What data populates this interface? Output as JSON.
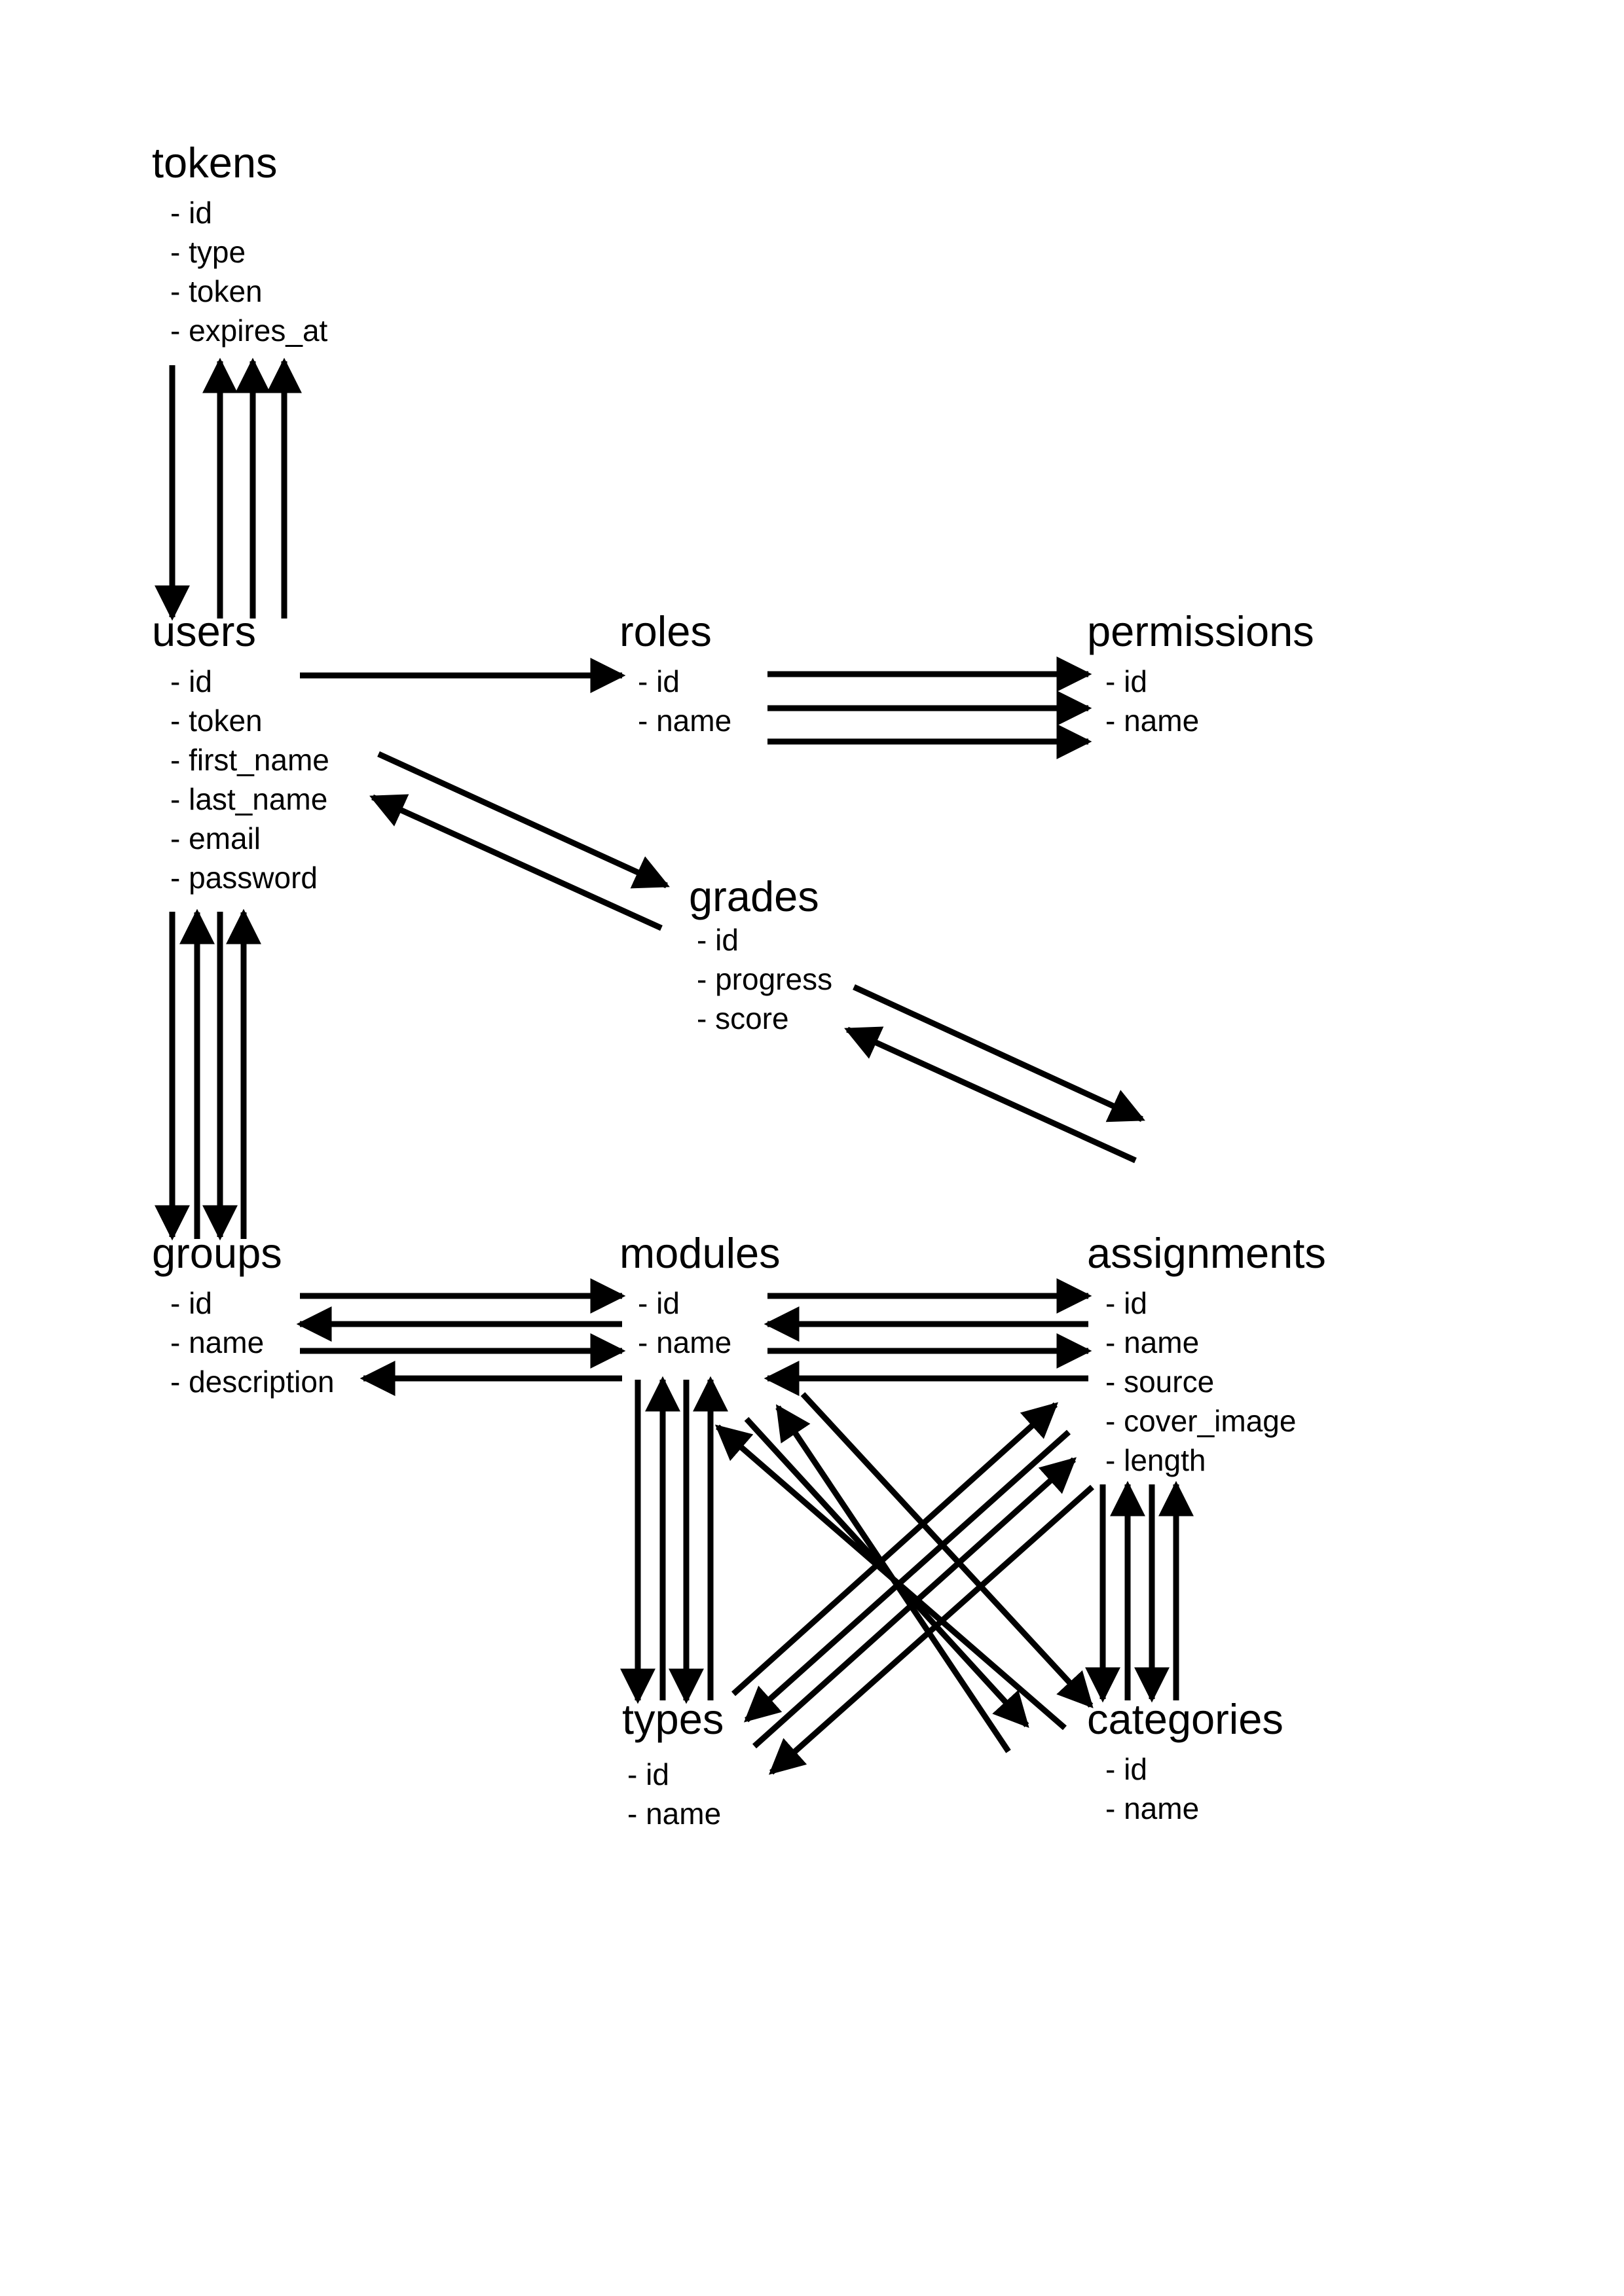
{
  "entities": {
    "tokens": {
      "title": "tokens",
      "fields": [
        "- id",
        "- type",
        "- token",
        "- expires_at"
      ]
    },
    "users": {
      "title": "users",
      "fields": [
        "- id",
        "- token",
        "- first_name",
        "- last_name",
        "- email",
        "- password"
      ]
    },
    "roles": {
      "title": "roles",
      "fields": [
        "- id",
        "- name"
      ]
    },
    "permissions": {
      "title": "permissions",
      "fields": [
        "- id",
        "- name"
      ]
    },
    "grades": {
      "title": "grades",
      "fields": [
        "- id",
        "- progress",
        "- score"
      ]
    },
    "groups": {
      "title": "groups",
      "fields": [
        "- id",
        "- name",
        "- description"
      ]
    },
    "modules": {
      "title": "modules",
      "fields": [
        "- id",
        "- name"
      ]
    },
    "assignments": {
      "title": "assignments",
      "fields": [
        "- id",
        "- name",
        "- source",
        "- cover_image",
        "- length"
      ]
    },
    "types": {
      "title": "types",
      "fields": [
        "- id",
        "- name"
      ]
    },
    "categories": {
      "title": "categories",
      "fields": [
        "- id",
        "- name"
      ]
    }
  },
  "relations": [
    {
      "from": "users",
      "to": "tokens"
    },
    {
      "from": "tokens",
      "to": "users"
    },
    {
      "from": "tokens",
      "to": "users"
    },
    {
      "from": "tokens",
      "to": "users"
    },
    {
      "from": "users",
      "to": "roles"
    },
    {
      "from": "roles",
      "to": "permissions"
    },
    {
      "from": "roles",
      "to": "permissions"
    },
    {
      "from": "roles",
      "to": "permissions"
    },
    {
      "from": "users",
      "to": "grades"
    },
    {
      "from": "grades",
      "to": "users"
    },
    {
      "from": "grades",
      "to": "assignments"
    },
    {
      "from": "assignments",
      "to": "grades"
    },
    {
      "from": "users",
      "to": "groups"
    },
    {
      "from": "groups",
      "to": "users"
    },
    {
      "from": "users",
      "to": "groups"
    },
    {
      "from": "groups",
      "to": "users"
    },
    {
      "from": "groups",
      "to": "modules"
    },
    {
      "from": "modules",
      "to": "groups"
    },
    {
      "from": "groups",
      "to": "modules"
    },
    {
      "from": "modules",
      "to": "groups"
    },
    {
      "from": "modules",
      "to": "assignments"
    },
    {
      "from": "assignments",
      "to": "modules"
    },
    {
      "from": "modules",
      "to": "assignments"
    },
    {
      "from": "assignments",
      "to": "modules"
    },
    {
      "from": "modules",
      "to": "types"
    },
    {
      "from": "types",
      "to": "modules"
    },
    {
      "from": "modules",
      "to": "types"
    },
    {
      "from": "types",
      "to": "modules"
    },
    {
      "from": "modules",
      "to": "categories"
    },
    {
      "from": "categories",
      "to": "modules"
    },
    {
      "from": "modules",
      "to": "categories"
    },
    {
      "from": "categories",
      "to": "modules"
    },
    {
      "from": "types",
      "to": "assignments"
    },
    {
      "from": "assignments",
      "to": "types"
    },
    {
      "from": "types",
      "to": "assignments"
    },
    {
      "from": "assignments",
      "to": "types"
    },
    {
      "from": "assignments",
      "to": "categories"
    },
    {
      "from": "categories",
      "to": "assignments"
    },
    {
      "from": "assignments",
      "to": "categories"
    },
    {
      "from": "categories",
      "to": "assignments"
    }
  ]
}
